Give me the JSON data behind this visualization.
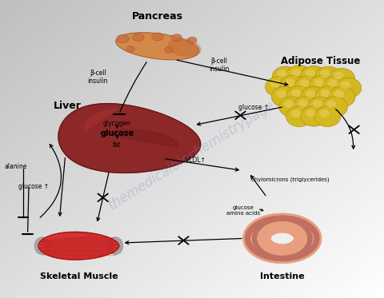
{
  "bg_gradient": [
    "#c0c0c0",
    "#e8e8e8",
    "#f5f5f5"
  ],
  "watermark": "themedicalbiochemistrypage",
  "pancreas_color": "#d4884a",
  "pancreas_dark": "#b8622a",
  "liver_color": "#8b2222",
  "liver_mid": "#a03030",
  "liver_highlight": "#c04040",
  "adipose_color": "#d4b820",
  "adipose_light": "#e8d060",
  "adipose_dark": "#b09010",
  "muscle_red": "#cc2222",
  "muscle_dark": "#991111",
  "muscle_tendon": "#b0b0b0",
  "intestine_outer": "#e8a080",
  "intestine_inner": "#c07060",
  "label_pancreas": "Pancreas",
  "label_liver": "Liver",
  "label_adipose": "Adipose Tissue",
  "label_muscle": "Skeletal Muscle",
  "label_intestine": "Intestine",
  "label_glycogen": "glycogen",
  "label_glucose_inner": "glucose",
  "label_fat": "fat",
  "label_bcell1": "β-cell\ninsulin",
  "label_bcell2": "β-cell\ninsulin",
  "label_glucose_adipose": "glucose ↑",
  "label_alanine": "alanine",
  "label_glucose_muscle": "glucose ↑",
  "label_vldl": "VLDL↑",
  "label_chylo": "chylomicrons (triglycerides)",
  "label_gluaa": "glucose\namino acids"
}
